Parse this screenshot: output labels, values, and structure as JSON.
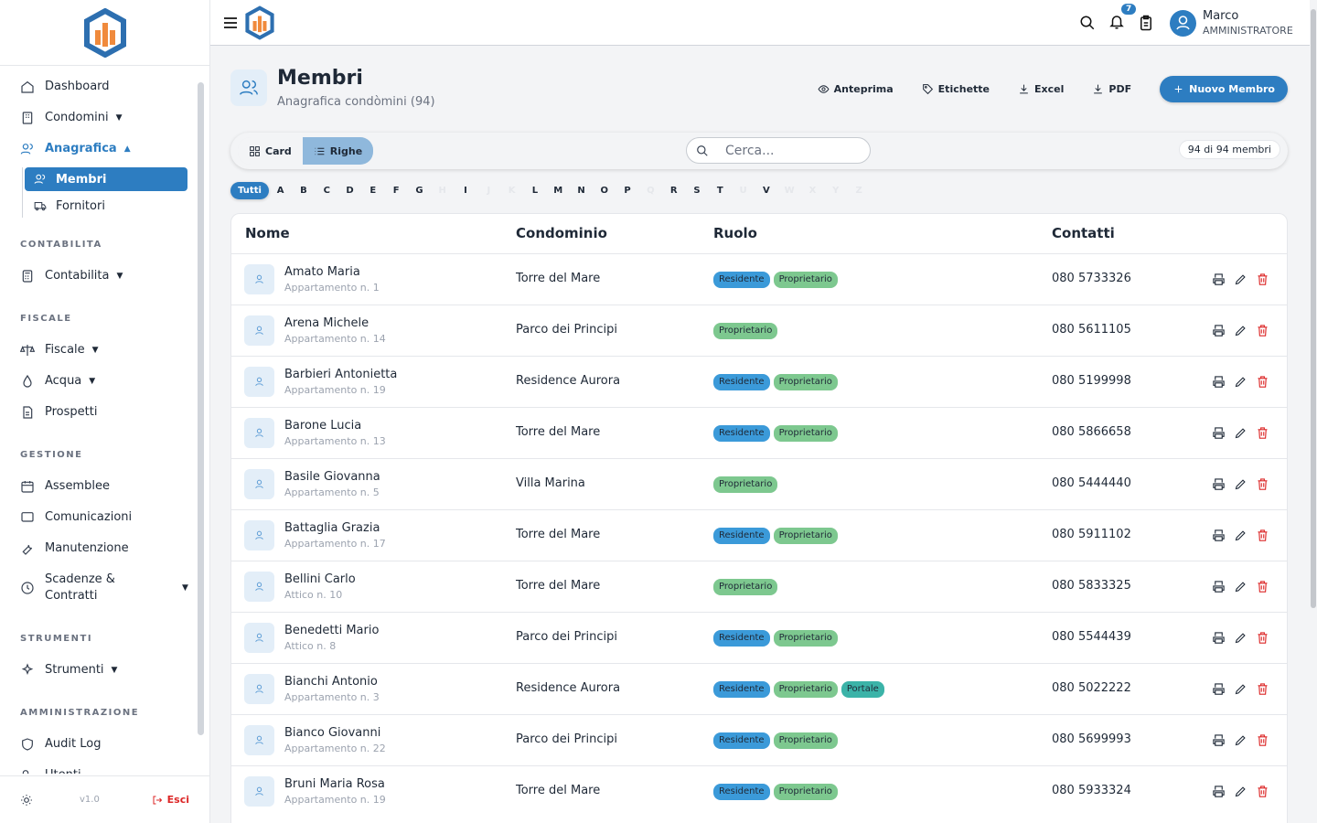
{
  "sidebar": {
    "groups": [
      {
        "items": [
          {
            "label": "Dashboard"
          },
          {
            "label": "Condomini",
            "expandable": true
          },
          {
            "label": "Anagrafica",
            "expandable": true,
            "active": true,
            "children": [
              {
                "label": "Membri",
                "active": true
              },
              {
                "label": "Fornitori"
              }
            ]
          }
        ]
      },
      {
        "title": "CONTABILITA",
        "items": [
          {
            "label": "Contabilita",
            "expandable": true
          }
        ]
      },
      {
        "title": "FISCALE",
        "items": [
          {
            "label": "Fiscale",
            "expandable": true
          },
          {
            "label": "Acqua",
            "expandable": true
          },
          {
            "label": "Prospetti"
          }
        ]
      },
      {
        "title": "GESTIONE",
        "items": [
          {
            "label": "Assemblee"
          },
          {
            "label": "Comunicazioni"
          },
          {
            "label": "Manutenzione"
          },
          {
            "label": "Scadenze & Contratti",
            "expandable": true
          }
        ]
      },
      {
        "title": "STRUMENTI",
        "items": [
          {
            "label": "Strumenti",
            "expandable": true
          }
        ]
      },
      {
        "title": "AMMINISTRAZIONE",
        "items": [
          {
            "label": "Audit Log"
          },
          {
            "label": "Utenti"
          }
        ]
      }
    ],
    "version": "v1.0",
    "logout": "Esci"
  },
  "topbar": {
    "notifications": "7",
    "user": {
      "name": "Marco",
      "role": "AMMINISTRATORE"
    }
  },
  "header": {
    "title": "Membri",
    "subtitle": "Anagrafica condòmini (94)",
    "actions": [
      "Anteprima",
      "Etichette",
      "Excel",
      "PDF"
    ],
    "primary_action": "Nuovo Membro"
  },
  "toolbar": {
    "views": [
      {
        "label": "Card",
        "active": false
      },
      {
        "label": "Righe",
        "active": true
      }
    ],
    "search_placeholder": "Cerca...",
    "count": "94 di 94 membri"
  },
  "letters": [
    {
      "label": "Tutti",
      "enabled": true,
      "active": true
    },
    {
      "label": "A",
      "enabled": true
    },
    {
      "label": "B",
      "enabled": true
    },
    {
      "label": "C",
      "enabled": true
    },
    {
      "label": "D",
      "enabled": true
    },
    {
      "label": "E",
      "enabled": true
    },
    {
      "label": "F",
      "enabled": true
    },
    {
      "label": "G",
      "enabled": true
    },
    {
      "label": "H",
      "enabled": false
    },
    {
      "label": "I",
      "enabled": true
    },
    {
      "label": "J",
      "enabled": false
    },
    {
      "label": "K",
      "enabled": false
    },
    {
      "label": "L",
      "enabled": true
    },
    {
      "label": "M",
      "enabled": true
    },
    {
      "label": "N",
      "enabled": true
    },
    {
      "label": "O",
      "enabled": true
    },
    {
      "label": "P",
      "enabled": true
    },
    {
      "label": "Q",
      "enabled": false
    },
    {
      "label": "R",
      "enabled": true
    },
    {
      "label": "S",
      "enabled": true
    },
    {
      "label": "T",
      "enabled": true
    },
    {
      "label": "U",
      "enabled": false
    },
    {
      "label": "V",
      "enabled": true
    },
    {
      "label": "W",
      "enabled": false
    },
    {
      "label": "X",
      "enabled": false
    },
    {
      "label": "Y",
      "enabled": false
    },
    {
      "label": "Z",
      "enabled": false
    }
  ],
  "table": {
    "columns": [
      "Nome",
      "Condominio",
      "Ruolo",
      "Contatti"
    ],
    "rows": [
      {
        "name": "Amato Maria",
        "unit": "Appartamento n. 1",
        "condominio": "Torre del Mare",
        "roles": [
          {
            "label": "Residente",
            "color": "#3b9ad9"
          },
          {
            "label": "Proprietario",
            "color": "#7dc88f"
          }
        ],
        "phone": "080 5733326"
      },
      {
        "name": "Arena Michele",
        "unit": "Appartamento n. 14",
        "condominio": "Parco dei Principi",
        "roles": [
          {
            "label": "Proprietario",
            "color": "#7dc88f"
          }
        ],
        "phone": "080 5611105"
      },
      {
        "name": "Barbieri Antonietta",
        "unit": "Appartamento n. 19",
        "condominio": "Residence Aurora",
        "roles": [
          {
            "label": "Residente",
            "color": "#3b9ad9"
          },
          {
            "label": "Proprietario",
            "color": "#7dc88f"
          }
        ],
        "phone": "080 5199998"
      },
      {
        "name": "Barone Lucia",
        "unit": "Appartamento n. 13",
        "condominio": "Torre del Mare",
        "roles": [
          {
            "label": "Residente",
            "color": "#3b9ad9"
          },
          {
            "label": "Proprietario",
            "color": "#7dc88f"
          }
        ],
        "phone": "080 5866658"
      },
      {
        "name": "Basile Giovanna",
        "unit": "Appartamento n. 5",
        "condominio": "Villa Marina",
        "roles": [
          {
            "label": "Proprietario",
            "color": "#7dc88f"
          }
        ],
        "phone": "080 5444440"
      },
      {
        "name": "Battaglia Grazia",
        "unit": "Appartamento n. 17",
        "condominio": "Torre del Mare",
        "roles": [
          {
            "label": "Residente",
            "color": "#3b9ad9"
          },
          {
            "label": "Proprietario",
            "color": "#7dc88f"
          }
        ],
        "phone": "080 5911102"
      },
      {
        "name": "Bellini Carlo",
        "unit": "Attico n. 10",
        "condominio": "Torre del Mare",
        "roles": [
          {
            "label": "Proprietario",
            "color": "#7dc88f"
          }
        ],
        "phone": "080 5833325"
      },
      {
        "name": "Benedetti Mario",
        "unit": "Attico n. 8",
        "condominio": "Parco dei Principi",
        "roles": [
          {
            "label": "Residente",
            "color": "#3b9ad9"
          },
          {
            "label": "Proprietario",
            "color": "#7dc88f"
          }
        ],
        "phone": "080 5544439"
      },
      {
        "name": "Bianchi Antonio",
        "unit": "Appartamento n. 3",
        "condominio": "Residence Aurora",
        "roles": [
          {
            "label": "Residente",
            "color": "#3b9ad9"
          },
          {
            "label": "Proprietario",
            "color": "#7dc88f"
          },
          {
            "label": "Portale",
            "color": "#3bb3a8"
          }
        ],
        "phone": "080 5022222"
      },
      {
        "name": "Bianco Giovanni",
        "unit": "Appartamento n. 22",
        "condominio": "Parco dei Principi",
        "roles": [
          {
            "label": "Residente",
            "color": "#3b9ad9"
          },
          {
            "label": "Proprietario",
            "color": "#7dc88f"
          }
        ],
        "phone": "080 5699993"
      },
      {
        "name": "Bruni Maria Rosa",
        "unit": "Appartamento n. 19",
        "condominio": "Torre del Mare",
        "roles": [
          {
            "label": "Residente",
            "color": "#3b9ad9"
          },
          {
            "label": "Proprietario",
            "color": "#7dc88f"
          }
        ],
        "phone": "080 5933324"
      }
    ]
  }
}
